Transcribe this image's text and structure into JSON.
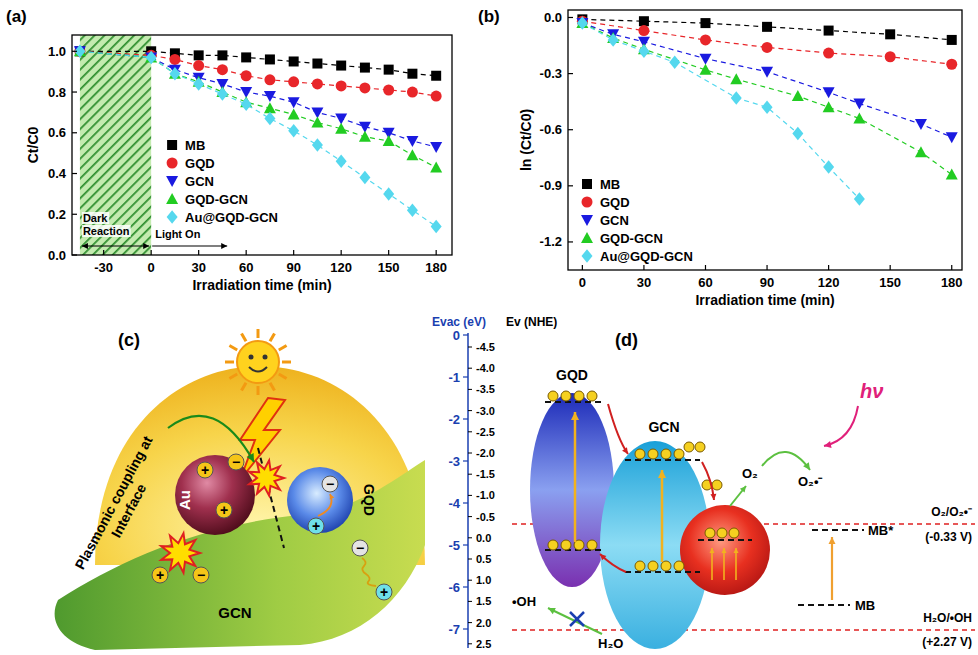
{
  "chart_data": [
    {
      "type": "line",
      "panel_label": "(a)",
      "x_label": "Irradiation time (min)",
      "y_label": "Ct/C0",
      "x": [
        -45,
        0,
        15,
        30,
        45,
        60,
        75,
        90,
        105,
        120,
        135,
        150,
        165,
        180
      ],
      "xlim": [
        -50,
        190
      ],
      "xticks": [
        -30,
        0,
        30,
        60,
        90,
        120,
        150,
        180
      ],
      "ylim": [
        0,
        1.08
      ],
      "yticks": [
        {
          "value": 0,
          "label": "0.0"
        },
        {
          "value": 0.2,
          "label": "0.2"
        },
        {
          "value": 0.4,
          "label": "0.4"
        },
        {
          "value": 0.6,
          "label": "0.6"
        },
        {
          "value": 0.8,
          "label": "0.8"
        },
        {
          "value": 1.0,
          "label": "1.0"
        }
      ],
      "legend": "center left",
      "dark_region": [
        -45,
        0
      ],
      "annotations": [
        "Dark Reaction",
        "Light On"
      ],
      "series": [
        {
          "name": "MB",
          "color": "#000000",
          "marker": "square",
          "line_style": "dashed",
          "values": [
            1.0,
            1.0,
            0.99,
            0.98,
            0.98,
            0.97,
            0.96,
            0.95,
            0.94,
            0.93,
            0.92,
            0.91,
            0.89,
            0.88
          ]
        },
        {
          "name": "GQD",
          "color": "#e8262a",
          "marker": "circle",
          "line_style": "dashed",
          "values": [
            1.0,
            0.98,
            0.96,
            0.93,
            0.91,
            0.88,
            0.86,
            0.85,
            0.84,
            0.83,
            0.82,
            0.81,
            0.8,
            0.78
          ]
        },
        {
          "name": "GCN",
          "color": "#1a1ae0",
          "marker": "triangle-down",
          "line_style": "dashed",
          "values": [
            1.0,
            0.97,
            0.91,
            0.87,
            0.84,
            0.8,
            0.78,
            0.75,
            0.7,
            0.67,
            0.63,
            0.6,
            0.56,
            0.53
          ]
        },
        {
          "name": "GQD-GCN",
          "color": "#22cc22",
          "marker": "triangle-up",
          "line_style": "dashed",
          "values": [
            1.0,
            0.97,
            0.89,
            0.85,
            0.8,
            0.75,
            0.72,
            0.69,
            0.65,
            0.62,
            0.58,
            0.56,
            0.49,
            0.43
          ]
        },
        {
          "name": "Au@GQD-GCN",
          "color": "#55d8ee",
          "marker": "diamond",
          "line_style": "dashed",
          "values": [
            1.0,
            0.97,
            0.89,
            0.84,
            0.79,
            0.74,
            0.67,
            0.61,
            0.54,
            0.46,
            0.38,
            0.3,
            0.22,
            0.14
          ]
        }
      ]
    },
    {
      "type": "line",
      "panel_label": "(b)",
      "x_label": "Irradiation time (min)",
      "y_label": "ln (Ct/C0)",
      "xlim": [
        -7,
        185
      ],
      "xticks": [
        0,
        30,
        60,
        90,
        120,
        150,
        180
      ],
      "ylim": [
        -1.35,
        0.04
      ],
      "yticks": [
        {
          "value": 0,
          "label": "0.0"
        },
        {
          "value": -0.3,
          "label": "-0.3"
        },
        {
          "value": -0.6,
          "label": "-0.6"
        },
        {
          "value": -0.9,
          "label": "-0.9"
        },
        {
          "value": -1.2,
          "label": "-1.2"
        }
      ],
      "legend": "lower left",
      "series": [
        {
          "name": "MB",
          "color": "#000000",
          "marker": "square",
          "line_style": "dashed",
          "x": [
            0,
            30,
            60,
            90,
            120,
            150,
            180
          ],
          "values": [
            -0.01,
            -0.02,
            -0.03,
            -0.05,
            -0.07,
            -0.09,
            -0.12
          ]
        },
        {
          "name": "GQD",
          "color": "#e8262a",
          "marker": "circle",
          "line_style": "dashed",
          "x": [
            0,
            30,
            60,
            90,
            120,
            150,
            180
          ],
          "values": [
            -0.02,
            -0.07,
            -0.12,
            -0.16,
            -0.19,
            -0.21,
            -0.25
          ]
        },
        {
          "name": "GCN",
          "color": "#1a1ae0",
          "marker": "triangle-down",
          "line_style": "dashed",
          "x": [
            0,
            15,
            30,
            60,
            90,
            120,
            135,
            165,
            180
          ],
          "values": [
            -0.03,
            -0.09,
            -0.13,
            -0.22,
            -0.29,
            -0.4,
            -0.46,
            -0.57,
            -0.64
          ]
        },
        {
          "name": "GQD-GCN",
          "color": "#22cc22",
          "marker": "triangle-up",
          "line_style": "dashed",
          "x": [
            0,
            15,
            30,
            60,
            75,
            105,
            120,
            135,
            165,
            180
          ],
          "values": [
            -0.03,
            -0.11,
            -0.17,
            -0.28,
            -0.33,
            -0.42,
            -0.48,
            -0.54,
            -0.72,
            -0.84
          ]
        },
        {
          "name": "Au@GQD-GCN",
          "color": "#55d8ee",
          "marker": "diamond",
          "line_style": "dashed",
          "x": [
            0,
            15,
            30,
            45,
            75,
            90,
            105,
            120,
            135
          ],
          "values": [
            -0.03,
            -0.12,
            -0.18,
            -0.24,
            -0.43,
            -0.48,
            -0.62,
            -0.8,
            -0.97
          ]
        }
      ]
    }
  ],
  "diagram_c": {
    "label": "(c)",
    "plasmonic": "Plasmonic coupling at Interface",
    "au": "Au",
    "gqd": "GQD",
    "gcn": "GCN",
    "plus": "+",
    "minus": "−"
  },
  "diagram_d": {
    "label": "(d)",
    "evac_title": "Evac (eV)",
    "nhe_title": "Ev (NHE)",
    "evac_ticks": [
      "0",
      "-1",
      "-2",
      "-3",
      "-4",
      "-5",
      "-6",
      "-7"
    ],
    "nhe_ticks": [
      "-4.5",
      "-4.0",
      "-3.5",
      "-3.0",
      "-2.5",
      "-2.0",
      "-1.5",
      "-1.0",
      "-0.5",
      "0.0",
      "0.5",
      "1.0",
      "1.5",
      "2.0",
      "2.5"
    ],
    "gqd": "GQD",
    "gcn": "GCN",
    "hv": "hν",
    "o2": "O₂",
    "o2_radical": "O₂•⁻",
    "o2_level": "O₂/O₂•⁻",
    "o2_potential": "(-0.33 V)",
    "mb_star": "MB*",
    "mb": "MB",
    "oh_level": "H₂O/•OH",
    "oh_potential": "(+2.27 V)",
    "oh": "•OH",
    "h2o": "H₂O"
  }
}
